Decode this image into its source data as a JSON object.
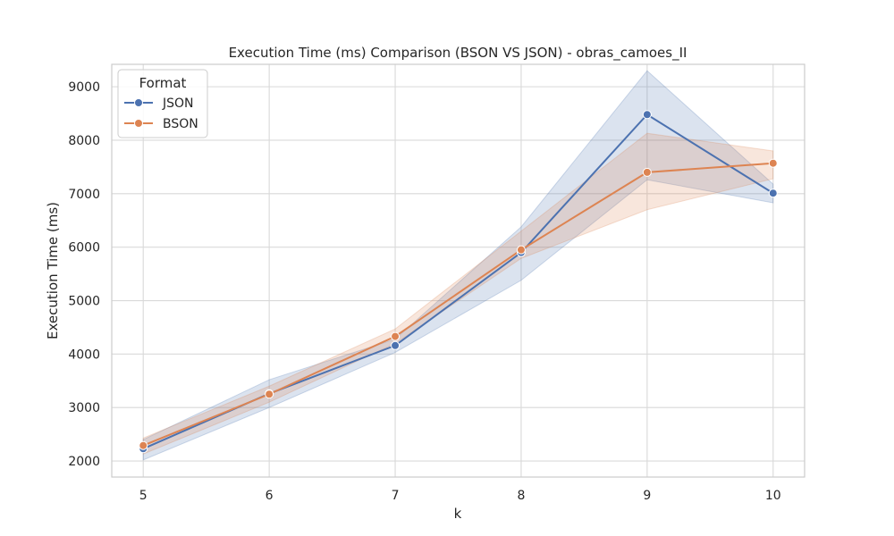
{
  "chart_data": {
    "type": "line",
    "title": "Execution Time (ms) Comparison (BSON VS JSON) - obras_camoes_II",
    "xlabel": "k",
    "ylabel": "Execution Time (ms)",
    "x": [
      5,
      6,
      7,
      8,
      9,
      10
    ],
    "x_ticks": [
      "5",
      "6",
      "7",
      "8",
      "9",
      "10"
    ],
    "y_ticks": [
      "2000",
      "3000",
      "4000",
      "5000",
      "6000",
      "7000",
      "8000",
      "9000"
    ],
    "xlim": [
      4.75,
      10.25
    ],
    "ylim": [
      1700,
      9420
    ],
    "grid": true,
    "legend": {
      "title": "Format",
      "placement": "top-left"
    },
    "series": [
      {
        "name": "JSON",
        "color": "#4c72b0",
        "values": [
          2230,
          3260,
          4160,
          5900,
          8480,
          7010
        ],
        "ci_low": [
          2020,
          3000,
          4030,
          5380,
          7260,
          6830
        ],
        "ci_high": [
          2400,
          3520,
          4280,
          6380,
          9300,
          7180
        ]
      },
      {
        "name": "BSON",
        "color": "#dd8452",
        "values": [
          2290,
          3250,
          4330,
          5950,
          7400,
          7570
        ],
        "ci_low": [
          2130,
          3100,
          4200,
          5790,
          6700,
          7280
        ],
        "ci_high": [
          2430,
          3400,
          4470,
          6300,
          8130,
          7800
        ]
      }
    ]
  }
}
